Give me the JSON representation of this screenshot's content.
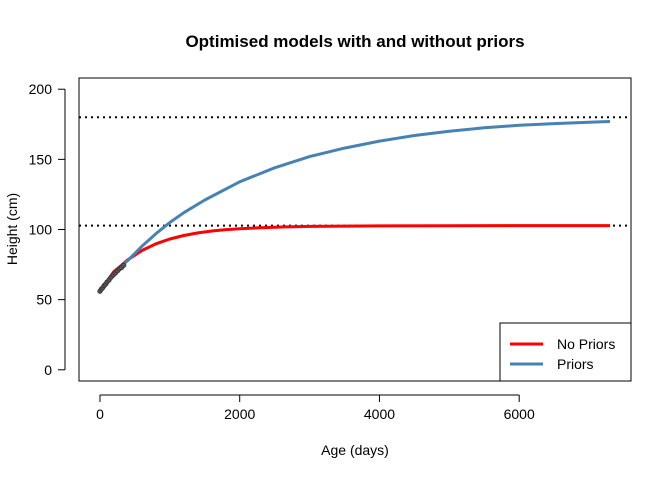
{
  "chart_data": {
    "type": "line",
    "title": "Optimised models with and without priors",
    "xlabel": "Age (days)",
    "ylabel": "Height (cm)",
    "xlim": [
      -300,
      7600
    ],
    "ylim": [
      -8,
      208
    ],
    "x_ticks": [
      0,
      2000,
      4000,
      6000
    ],
    "y_ticks": [
      0,
      50,
      100,
      150,
      200
    ],
    "grid": false,
    "legend_position": "bottom-right",
    "series": [
      {
        "name": "No Priors",
        "color": "#ff0000",
        "x": [
          0,
          200,
          400,
          600,
          800,
          1000,
          1200,
          1400,
          1600,
          1800,
          2000,
          2300,
          2600,
          3000,
          3500,
          4000,
          5000,
          6000,
          7300
        ],
        "y": [
          56,
          70,
          78.5,
          85,
          89.8,
          93.2,
          95.7,
          97.6,
          98.9,
          99.9,
          100.6,
          101.3,
          101.8,
          102.2,
          102.4,
          102.6,
          102.7,
          102.8,
          102.8
        ]
      },
      {
        "name": "Priors",
        "color": "#4682b4",
        "x": [
          250,
          400,
          600,
          800,
          1000,
          1200,
          1500,
          2000,
          2500,
          3000,
          3500,
          4000,
          4500,
          5000,
          5500,
          6000,
          6500,
          7000,
          7300
        ],
        "y": [
          72,
          78,
          88,
          97,
          105,
          112,
          121,
          134,
          144,
          152,
          158,
          163,
          167,
          170,
          172.5,
          174.3,
          175.5,
          176.5,
          177
        ]
      }
    ],
    "observations": {
      "color": "#555555",
      "x": [
        0,
        20,
        40,
        60,
        80,
        100,
        130,
        160,
        190,
        220,
        250,
        280,
        310,
        340
      ],
      "y": [
        56,
        57.5,
        58.5,
        60,
        61,
        62.5,
        64,
        66,
        67.5,
        69,
        70.5,
        72,
        73,
        74.5
      ]
    },
    "reference_lines": [
      {
        "y": 180,
        "style": "dotted",
        "color": "#000000"
      },
      {
        "y": 102.8,
        "style": "dotted",
        "color": "#000000"
      }
    ]
  }
}
